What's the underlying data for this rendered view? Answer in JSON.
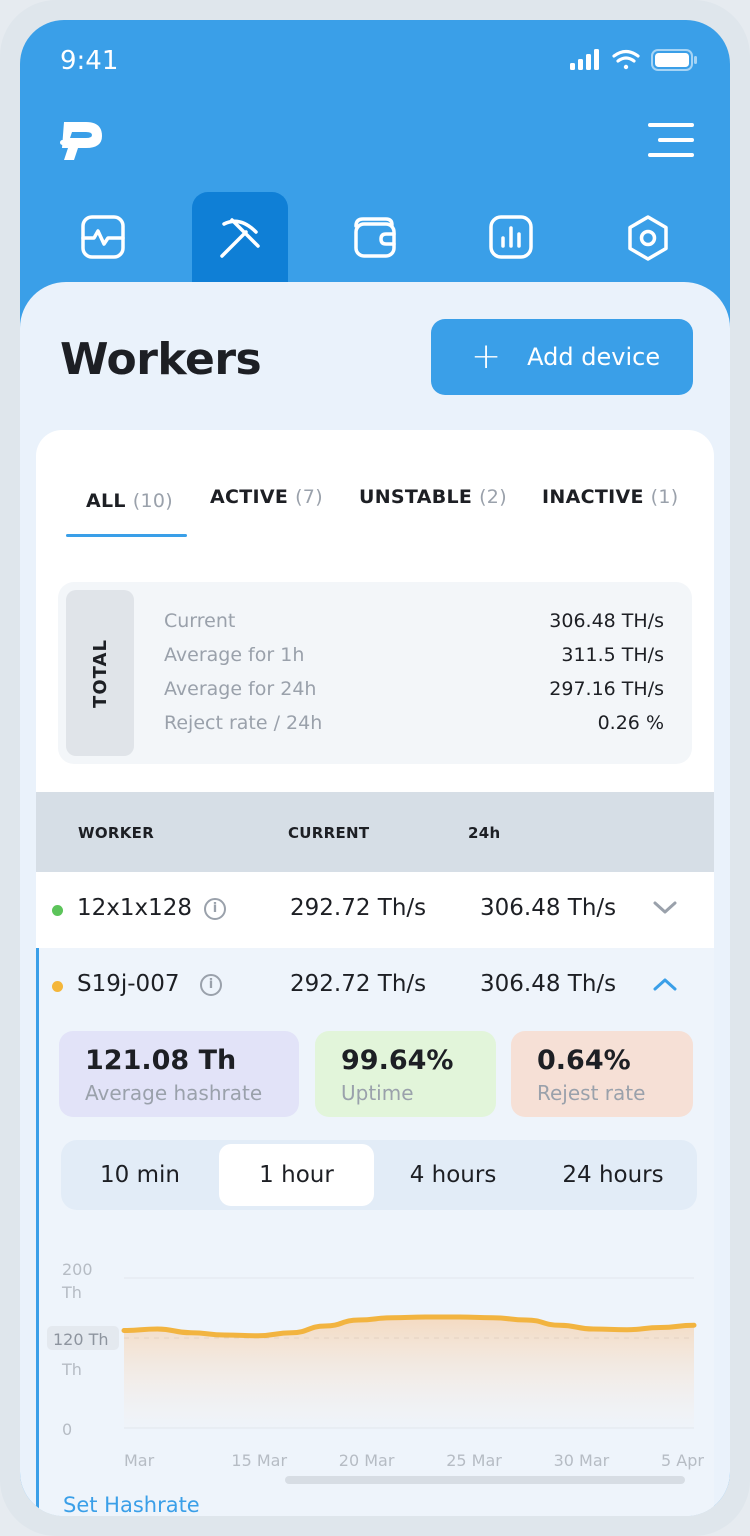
{
  "status_bar": {
    "time": "9:41"
  },
  "nav": {
    "items": [
      {
        "icon": "pulse-monitor-icon",
        "active": false
      },
      {
        "icon": "pickaxe-icon",
        "active": true
      },
      {
        "icon": "wallet-icon",
        "active": false
      },
      {
        "icon": "bar-chart-icon",
        "active": false
      },
      {
        "icon": "settings-hexagon-icon",
        "active": false
      }
    ]
  },
  "page": {
    "title": "Workers",
    "add_button": "Add device"
  },
  "tabs": [
    {
      "label": "ALL",
      "count": "(10)"
    },
    {
      "label": "ACTIVE",
      "count": "(7)"
    },
    {
      "label": "UNSTABLE",
      "count": "(2)"
    },
    {
      "label": "INACTIVE",
      "count": "(1)"
    }
  ],
  "total": {
    "label": "TOTAL",
    "rows": [
      {
        "k": "Current",
        "v": "306.48 TH/s"
      },
      {
        "k": "Average for 1h",
        "v": "311.5 TH/s"
      },
      {
        "k": "Average for 24h",
        "v": "297.16 TH/s"
      },
      {
        "k": "Reject rate / 24h",
        "v": "0.26 %"
      }
    ]
  },
  "table": {
    "headers": {
      "worker": "WORKER",
      "current": "CURRENT",
      "d24": "24h"
    },
    "rows": [
      {
        "name": "12x1x128",
        "current": "292.72 Th/s",
        "d24": "306.48 Th/s",
        "status_color": "#5cc45a",
        "expanded": false
      },
      {
        "name": "S19j-007",
        "current": "292.72 Th/s",
        "d24": "306.48 Th/s",
        "status_color": "#f4b63a",
        "expanded": true
      }
    ]
  },
  "details": {
    "metrics": [
      {
        "value": "121.08 Th",
        "label": "Average hashrate",
        "bg": "#e2e3f8"
      },
      {
        "value": "99.64%",
        "label": "Uptime",
        "bg": "#e2f5da"
      },
      {
        "value": "0.64%",
        "label": "Rejest rate",
        "bg": "#f6e0d6"
      }
    ],
    "periods": [
      "10 min",
      "1 hour",
      "4 hours",
      "24 hours"
    ],
    "selected_period": "1 hour",
    "set_hashrate": "Set Hashrate"
  },
  "chart_data": {
    "type": "area",
    "y_tick_labels": [
      "200",
      "Th",
      "120 Th",
      "Th",
      "0"
    ],
    "ylim": [
      0,
      200
    ],
    "x_tick_labels": [
      "Mar",
      "15 Mar",
      "20 Mar",
      "25 Mar",
      "30 Mar",
      "5 Apr"
    ],
    "reference_line": 120,
    "reference_label": "120 Th",
    "series": [
      {
        "values": [
          130,
          132,
          127,
          124,
          123,
          127,
          136,
          144,
          147,
          148,
          148,
          147,
          144,
          137,
          132,
          131,
          134,
          137
        ]
      }
    ],
    "line_color": "#f2b440",
    "grid": true
  },
  "colors": {
    "accent": "#3a9fe8",
    "accent_dark": "#0f7fd6"
  }
}
